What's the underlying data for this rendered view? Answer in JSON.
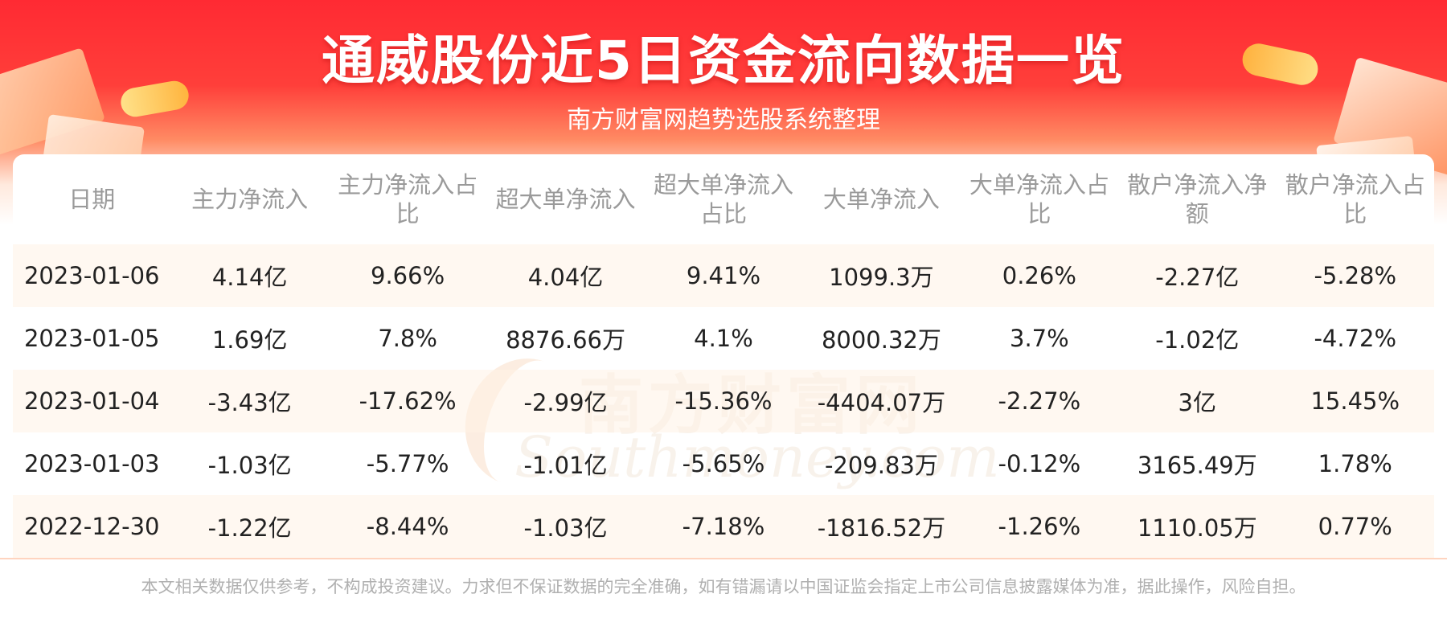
{
  "header": {
    "title": "通威股份近5日资金流向数据一览",
    "subtitle": "南方财富网趋势选股系统整理"
  },
  "watermark": {
    "cn": "南方财富网",
    "en": "Southmoney.com"
  },
  "table": {
    "columns": [
      "日期",
      "主力净流入",
      "主力净流入占比",
      "超大单净流入",
      "超大单净流入占比",
      "大单净流入",
      "大单净流入占比",
      "散户净流入净额",
      "散户净流入占比"
    ],
    "rows": [
      [
        "2023-01-06",
        "4.14亿",
        "9.66%",
        "4.04亿",
        "9.41%",
        "1099.3万",
        "0.26%",
        "-2.27亿",
        "-5.28%"
      ],
      [
        "2023-01-05",
        "1.69亿",
        "7.8%",
        "8876.66万",
        "4.1%",
        "8000.32万",
        "3.7%",
        "-1.02亿",
        "-4.72%"
      ],
      [
        "2023-01-04",
        "-3.43亿",
        "-17.62%",
        "-2.99亿",
        "-15.36%",
        "-4404.07万",
        "-2.27%",
        "3亿",
        "15.45%"
      ],
      [
        "2023-01-03",
        "-1.03亿",
        "-5.77%",
        "-1.01亿",
        "-5.65%",
        "-209.83万",
        "-0.12%",
        "3165.49万",
        "1.78%"
      ],
      [
        "2022-12-30",
        "-1.22亿",
        "-8.44%",
        "-1.03亿",
        "-7.18%",
        "-1816.52万",
        "-1.26%",
        "1110.05万",
        "0.77%"
      ]
    ]
  },
  "footer": {
    "disclaimer": "本文相关数据仅供参考，不构成投资建议。力求但不保证数据的完全准确，如有错漏请以中国证监会指定上市公司信息披露媒体为准，据此操作，风险自担。"
  },
  "colors": {
    "banner_red": "#ff2a33",
    "header_text": "#9a9a9a",
    "stripe": "#fff2e6"
  }
}
